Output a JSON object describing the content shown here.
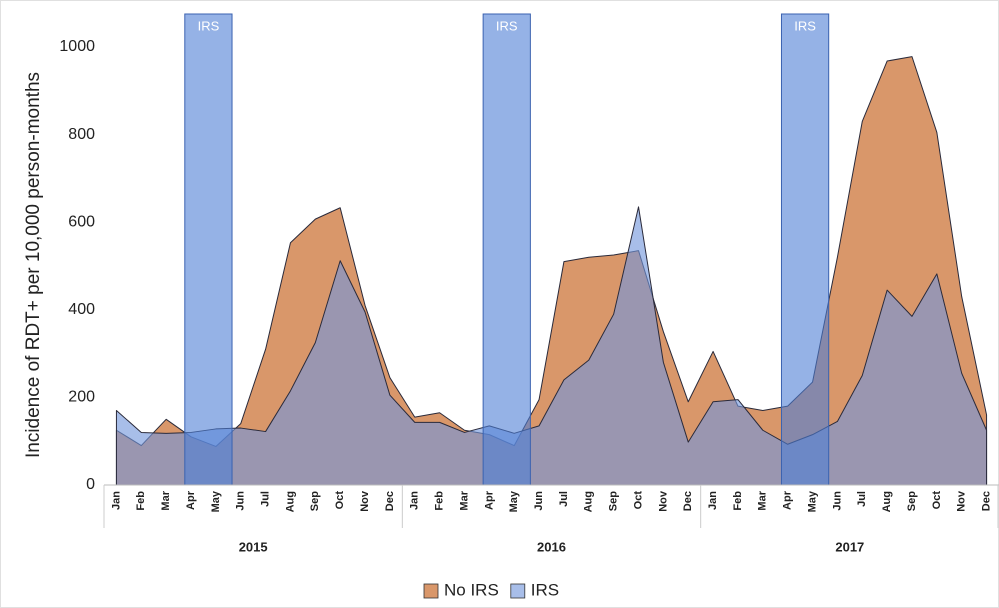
{
  "chart_data": {
    "type": "area",
    "y_label": "Incidence of RDT+ per 10,000 person-months",
    "categories": [
      "Jan",
      "Feb",
      "Mar",
      "Apr",
      "May",
      "Jun",
      "Jul",
      "Aug",
      "Sep",
      "Oct",
      "Nov",
      "Dec",
      "Jan",
      "Feb",
      "Mar",
      "Apr",
      "May",
      "Jun",
      "Jul",
      "Aug",
      "Sep",
      "Oct",
      "Nov",
      "Dec",
      "Jan",
      "Feb",
      "Mar",
      "Apr",
      "May",
      "Jun",
      "Jul",
      "Aug",
      "Sep",
      "Oct",
      "Nov",
      "Dec"
    ],
    "groups": [
      "2015",
      "2016",
      "2017"
    ],
    "series": [
      {
        "name": "No IRS",
        "color": "#d9976a",
        "values": [
          125,
          90,
          150,
          110,
          88,
          140,
          310,
          553,
          607,
          633,
          410,
          245,
          155,
          165,
          125,
          115,
          90,
          195,
          510,
          520,
          525,
          535,
          350,
          190,
          305,
          180,
          170,
          180,
          235,
          520,
          830,
          968,
          978,
          805,
          430,
          160
        ]
      },
      {
        "name": "IRS",
        "color": "#7396dc",
        "values": [
          170,
          120,
          118,
          120,
          128,
          130,
          122,
          215,
          325,
          512,
          395,
          205,
          143,
          143,
          120,
          135,
          118,
          135,
          240,
          285,
          390,
          635,
          280,
          98,
          190,
          195,
          125,
          93,
          115,
          145,
          250,
          445,
          385,
          482,
          255,
          125
        ]
      }
    ],
    "bands": [
      {
        "label": "IRS",
        "group": "2015",
        "from": "Apr",
        "to": "May"
      },
      {
        "label": "IRS",
        "group": "2016",
        "from": "Apr",
        "to": "May"
      },
      {
        "label": "IRS",
        "group": "2017",
        "from": "Apr",
        "to": "May"
      }
    ],
    "ylim": [
      0,
      1000
    ],
    "yticks": [
      0,
      200,
      400,
      600,
      800,
      1000
    ],
    "grid": false,
    "legend": "bottom"
  }
}
